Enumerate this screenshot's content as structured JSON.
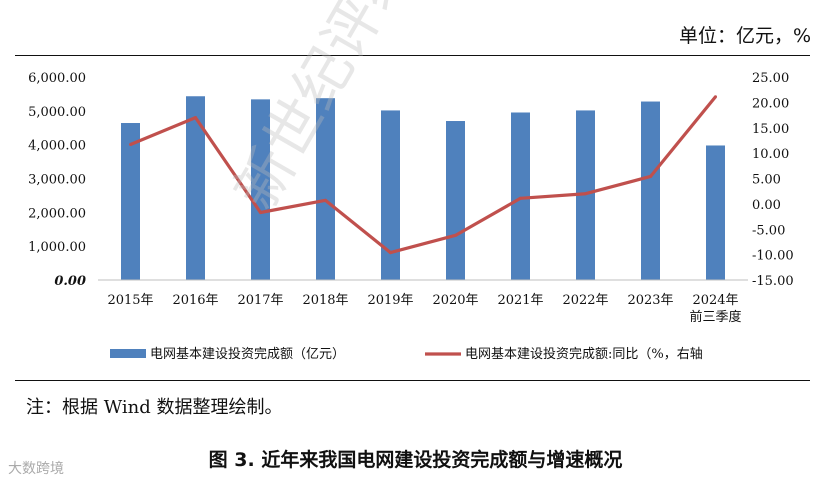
{
  "unit_label": "单位：亿元，%",
  "note": "注：根据 Wind 数据整理绘制。",
  "caption": "图 3. 近年来我国电网建设投资完成额与增速概况",
  "watermark_text": "新世纪评级版权",
  "corner_watermark": "大数跨境",
  "colors": {
    "bar": "#4f81bd",
    "line": "#c0504d"
  },
  "chart_data": {
    "type": "bar",
    "categories": [
      "2015年",
      "2016年",
      "2017年",
      "2018年",
      "2019年",
      "2020年",
      "2021年",
      "2022年",
      "2023年",
      "2024年前三季度"
    ],
    "category_lines": [
      [
        "2015年"
      ],
      [
        "2016年"
      ],
      [
        "2017年"
      ],
      [
        "2018年"
      ],
      [
        "2019年"
      ],
      [
        "2020年"
      ],
      [
        "2021年"
      ],
      [
        "2022年"
      ],
      [
        "2023年"
      ],
      [
        "2024年",
        "前三季度"
      ]
    ],
    "series": [
      {
        "name": "电网基本建设投资完成额（亿元）",
        "type": "bar",
        "axis": "left",
        "values": [
          4640,
          5431,
          5339,
          5374,
          5012,
          4699,
          4951,
          5012,
          5275,
          3976
        ]
      },
      {
        "name": "电网基本建设投资完成额:同比（%，右轴",
        "type": "line",
        "axis": "right",
        "values": [
          11.7,
          17.0,
          -1.7,
          0.7,
          -9.6,
          -6.2,
          1.1,
          2.0,
          5.4,
          21.1
        ]
      }
    ],
    "left_axis": {
      "ylim": [
        0,
        6000
      ],
      "ticks": [
        "0.00",
        "1,000.00",
        "2,000.00",
        "3,000.00",
        "4,000.00",
        "5,000.00",
        "6,000.00"
      ]
    },
    "right_axis": {
      "ylim": [
        -15,
        25
      ],
      "ticks": [
        "-15.00",
        "-10.00",
        "-5.00",
        "0.00",
        "5.00",
        "10.00",
        "15.00",
        "20.00",
        "25.00"
      ]
    },
    "grid": false,
    "legend_position": "bottom"
  }
}
